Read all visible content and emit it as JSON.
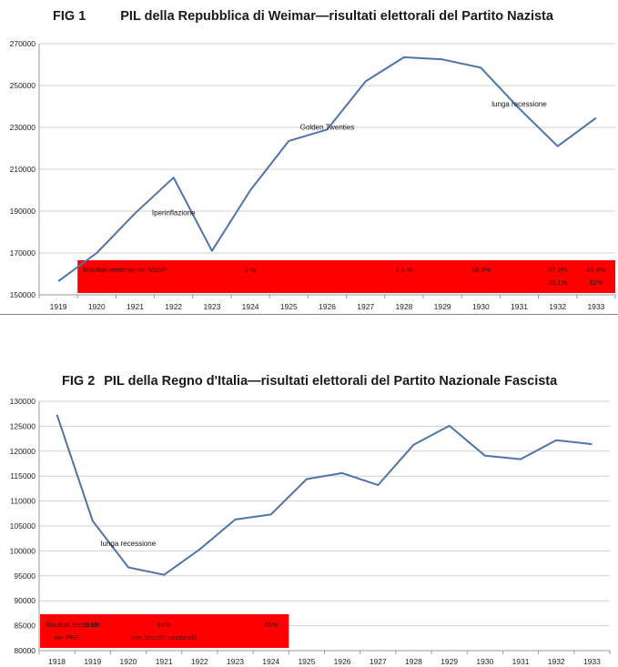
{
  "chart_data": [
    {
      "type": "line",
      "fig_label": "FIG 1",
      "title": "PIL della Repubblica di Weimar—risultati elettorali del Partito Nazista",
      "categories": [
        "1919",
        "1920",
        "1921",
        "1922",
        "1923",
        "1924",
        "1925",
        "1926",
        "1927",
        "1928",
        "1929",
        "1930",
        "1931",
        "1932",
        "1933"
      ],
      "series": [
        {
          "values": [
            156500,
            170000,
            189000,
            206000,
            171000,
            200000,
            223500,
            229000,
            252000,
            263500,
            262500,
            258500,
            239000,
            221000,
            234500
          ]
        }
      ],
      "ylim": [
        150000,
        270000
      ],
      "yticks": [
        "150000",
        "170000",
        "190000",
        "210000",
        "230000",
        "250000",
        "270000"
      ],
      "grid": true,
      "line_color": "#4f74a8",
      "annotations": [
        {
          "text": "Iperinflazione",
          "x": "1922",
          "y": 188000
        },
        {
          "text": "Golden Twenties",
          "x": "1926",
          "y": 229000
        },
        {
          "text": "lunga recessione",
          "x": "1931",
          "y": 240000
        }
      ],
      "results_box": {
        "color": "#ff0000",
        "x_from": "1920",
        "x_to": "1933",
        "label": "Risultati elettorali del NSDP",
        "entries": [
          {
            "text": "3 %",
            "x": "1924",
            "row": 1
          },
          {
            "text": "2,6 %",
            "x": "1928",
            "row": 1
          },
          {
            "text": "18,3%",
            "x": "1930",
            "row": 1
          },
          {
            "text": "37,9%",
            "x": "1932",
            "row": 1
          },
          {
            "text": "43,9%",
            "x": "1933",
            "row": 1
          },
          {
            "text": "33,1%",
            "x": "1932",
            "row": 2
          },
          {
            "text": "92%",
            "x": "1933",
            "row": 2
          }
        ]
      }
    },
    {
      "type": "line",
      "fig_label": "FIG 2",
      "title": "PIL della Regno d'Italia—risultati elettorali del Partito Nazionale Fascista",
      "categories": [
        "1918",
        "1919",
        "1920",
        "1921",
        "1922",
        "1923",
        "1924",
        "1925",
        "1926",
        "1927",
        "1928",
        "1929",
        "1930",
        "1931",
        "1932",
        "1933"
      ],
      "series": [
        {
          "values": [
            127300,
            106000,
            96700,
            95200,
            100300,
            106300,
            107300,
            114400,
            115600,
            113200,
            121300,
            125100,
            119100,
            118400,
            122200,
            121400
          ]
        }
      ],
      "ylim": [
        80000,
        130000
      ],
      "yticks": [
        "80000",
        "85000",
        "90000",
        "95000",
        "100000",
        "105000",
        "110000",
        "115000",
        "120000",
        "125000",
        "130000"
      ],
      "grid": true,
      "line_color": "#4f74a8",
      "annotations": [
        {
          "text": "lunga recessione",
          "x": "1920",
          "y": 101000
        }
      ],
      "results_box": {
        "color": "#ff0000",
        "x_from": "1918",
        "x_to": "1924",
        "label": "Risultati elettorali",
        "label2": "dei PNF",
        "entries": [
          {
            "text": "0,1%",
            "x": "1919",
            "row": 1
          },
          {
            "text": "14%",
            "x": "1921",
            "row": 1
          },
          {
            "text": "(nei blocchi nazionali)",
            "x": "1921",
            "row": 2
          },
          {
            "text": "65%",
            "x": "1924",
            "row": 1
          }
        ]
      }
    }
  ]
}
